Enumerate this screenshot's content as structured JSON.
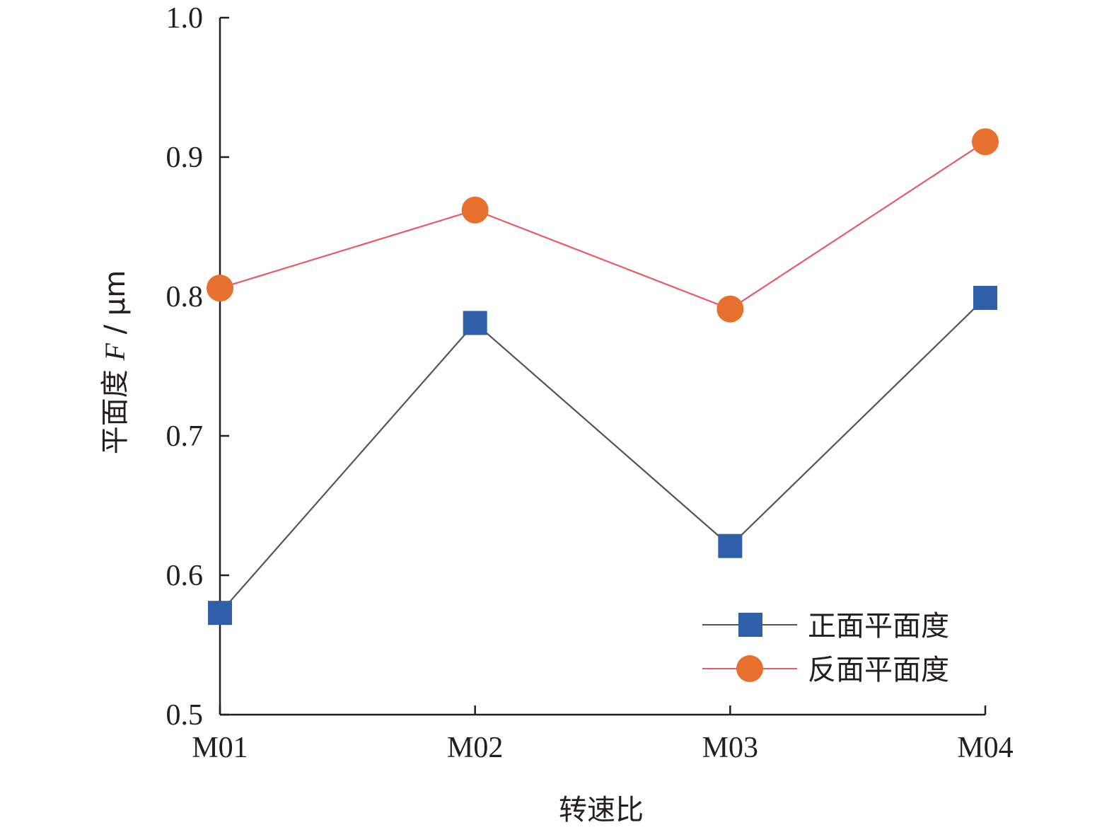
{
  "chart_data": {
    "type": "line",
    "categories": [
      "M01",
      "M02",
      "M03",
      "M04"
    ],
    "ylim": [
      0.5,
      1.0
    ],
    "yticks": [
      "0.5",
      "0.6",
      "0.7",
      "0.8",
      "0.9",
      "1.0"
    ],
    "xlabel": "转速比",
    "ylabel": "平面度 F / μm",
    "ylabel_parts": {
      "prefix": "平面度 ",
      "italic": "F",
      "suffix": " / μm"
    },
    "grid": false,
    "legend_position": "bottom-right",
    "series": [
      {
        "name": "正面平面度",
        "marker": "square",
        "marker_color": "#2e5fa8",
        "line_color": "#555555",
        "values": [
          0.573,
          0.781,
          0.621,
          0.799
        ]
      },
      {
        "name": "反面平面度",
        "marker": "circle",
        "marker_color": "#e8702f",
        "line_color": "#e85a6a",
        "values": [
          0.806,
          0.862,
          0.791,
          0.911
        ]
      }
    ]
  }
}
